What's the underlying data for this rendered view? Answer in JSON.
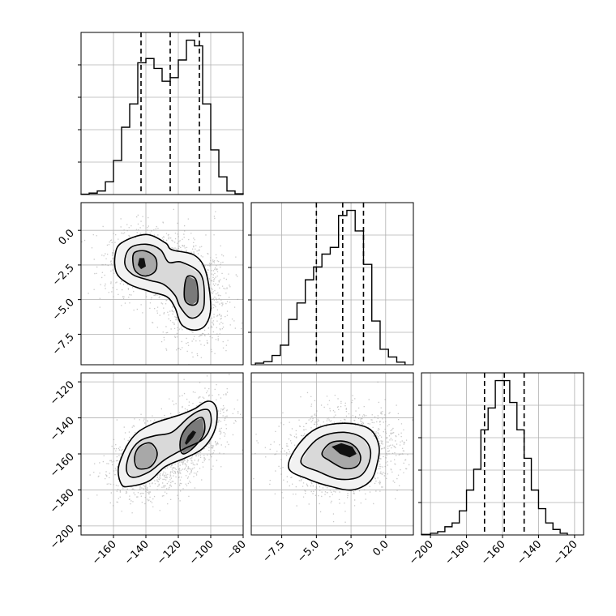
{
  "chart_data": {
    "type": "corner",
    "grid": true,
    "parameters": [
      {
        "index": 0,
        "range": [
          -180,
          -80
        ],
        "ticks": [
          -160,
          -140,
          -120,
          -100,
          -80
        ],
        "tick_labels": [
          "−160",
          "−140",
          "−120",
          "−100",
          "−80"
        ],
        "quantiles": [
          -143,
          -125,
          -107
        ],
        "hist_bins": [
          [
            -180,
            -175,
            0.5
          ],
          [
            -175,
            -170,
            2
          ],
          [
            -170,
            -165,
            5
          ],
          [
            -165,
            -160,
            18
          ],
          [
            -160,
            -155,
            48
          ],
          [
            -155,
            -150,
            95
          ],
          [
            -150,
            -145,
            128
          ],
          [
            -145,
            -140,
            186
          ],
          [
            -140,
            -135,
            192
          ],
          [
            -135,
            -130,
            178
          ],
          [
            -130,
            -125,
            160
          ],
          [
            -125,
            -120,
            165
          ],
          [
            -120,
            -115,
            190
          ],
          [
            -115,
            -110,
            218
          ],
          [
            -110,
            -105,
            210
          ],
          [
            -105,
            -100,
            128
          ],
          [
            -100,
            -95,
            63
          ],
          [
            -95,
            -90,
            25
          ],
          [
            -90,
            -85,
            5
          ],
          [
            -85,
            -80,
            1
          ]
        ]
      },
      {
        "index": 1,
        "range": [
          -9.7,
          2.0
        ],
        "ticks": [
          -7.5,
          -5.0,
          -2.5,
          0.0
        ],
        "tick_labels": [
          "−7.5",
          "−5.0",
          "−2.5",
          "0.0"
        ],
        "quantiles": [
          -5.0,
          -3.1,
          -1.6
        ],
        "hist_bins": [
          [
            -9.4,
            -8.8,
            3
          ],
          [
            -8.8,
            -8.2,
            6
          ],
          [
            -8.2,
            -7.6,
            18
          ],
          [
            -7.6,
            -7.0,
            38
          ],
          [
            -7.0,
            -6.4,
            88
          ],
          [
            -6.4,
            -5.8,
            120
          ],
          [
            -5.8,
            -5.2,
            165
          ],
          [
            -5.2,
            -4.6,
            190
          ],
          [
            -4.6,
            -4.0,
            215
          ],
          [
            -4.0,
            -3.4,
            228
          ],
          [
            -3.4,
            -2.8,
            290
          ],
          [
            -2.8,
            -2.2,
            300
          ],
          [
            -2.2,
            -1.6,
            260
          ],
          [
            -1.6,
            -1.0,
            195
          ],
          [
            -1.0,
            -0.4,
            85
          ],
          [
            -0.4,
            0.2,
            30
          ],
          [
            0.2,
            0.8,
            15
          ],
          [
            0.8,
            1.4,
            5
          ]
        ]
      },
      {
        "index": 2,
        "range": [
          -205,
          -115
        ],
        "ticks": [
          -200,
          -180,
          -160,
          -140,
          -120
        ],
        "tick_labels": [
          "−200",
          "−180",
          "−160",
          "−140",
          "−120"
        ],
        "quantiles": [
          -170,
          -159,
          -148
        ],
        "hist_bins": [
          [
            -205,
            -200,
            1
          ],
          [
            -200,
            -196,
            3
          ],
          [
            -196,
            -192,
            6
          ],
          [
            -192,
            -188,
            15
          ],
          [
            -188,
            -184,
            22
          ],
          [
            -184,
            -180,
            44
          ],
          [
            -180,
            -176,
            82
          ],
          [
            -176,
            -172,
            120
          ],
          [
            -172,
            -168,
            192
          ],
          [
            -168,
            -164,
            232
          ],
          [
            -164,
            -160,
            282
          ],
          [
            -160,
            -156,
            282
          ],
          [
            -156,
            -152,
            242
          ],
          [
            -152,
            -148,
            192
          ],
          [
            -148,
            -144,
            140
          ],
          [
            -144,
            -140,
            82
          ],
          [
            -140,
            -136,
            48
          ],
          [
            -136,
            -132,
            22
          ],
          [
            -132,
            -128,
            10
          ],
          [
            -128,
            -124,
            3
          ]
        ]
      }
    ],
    "pairs": [
      {
        "x_param": 0,
        "y_param": 1,
        "modes": [
          {
            "cx": -140,
            "cy": -2.3,
            "sx": 11,
            "sy": 1.1,
            "rho": 0.0,
            "weight": 0.5
          },
          {
            "cx": -110,
            "cy": -4.6,
            "sx": 9,
            "sy": 1.6,
            "rho": 0.0,
            "weight": 0.5
          }
        ],
        "contours": [
          {
            "level": "outer",
            "points": [
              [
                -155,
                -0.9
              ],
              [
                -140,
                -0.3
              ],
              [
                -128,
                -0.9
              ],
              [
                -124,
                -1.4
              ],
              [
                -110,
                -1.8
              ],
              [
                -103,
                -3.0
              ],
              [
                -100,
                -5.5
              ],
              [
                -103,
                -6.8
              ],
              [
                -110,
                -7.2
              ],
              [
                -118,
                -6.8
              ],
              [
                -122,
                -5.6
              ],
              [
                -127,
                -4.8
              ],
              [
                -138,
                -4.4
              ],
              [
                -150,
                -3.9
              ],
              [
                -158,
                -3.1
              ],
              [
                -159,
                -1.8
              ]
            ]
          },
          {
            "level": "middle",
            "points": [
              [
                -150,
                -1.3
              ],
              [
                -140,
                -1.0
              ],
              [
                -131,
                -1.4
              ],
              [
                -126,
                -2.3
              ],
              [
                -118,
                -2.3
              ],
              [
                -106,
                -3.2
              ],
              [
                -104,
                -5.2
              ],
              [
                -107,
                -6.1
              ],
              [
                -113,
                -6.3
              ],
              [
                -119,
                -5.5
              ],
              [
                -122,
                -4.7
              ],
              [
                -129,
                -3.9
              ],
              [
                -138,
                -3.6
              ],
              [
                -148,
                -3.2
              ],
              [
                -153,
                -2.4
              ]
            ]
          },
          {
            "level": "inner-a",
            "points": [
              [
                -147,
                -1.6
              ],
              [
                -140,
                -1.5
              ],
              [
                -134,
                -2.0
              ],
              [
                -134,
                -2.9
              ],
              [
                -140,
                -3.3
              ],
              [
                -146,
                -3.0
              ],
              [
                -148,
                -2.3
              ]
            ]
          },
          {
            "level": "inner-b",
            "points": [
              [
                -114,
                -3.3
              ],
              [
                -109,
                -3.6
              ],
              [
                -108,
                -5.1
              ],
              [
                -112,
                -5.4
              ],
              [
                -116,
                -5.0
              ],
              [
                -116,
                -3.9
              ]
            ]
          },
          {
            "level": "core",
            "points": [
              [
                -144,
                -2.0
              ],
              [
                -141,
                -2.0
              ],
              [
                -140,
                -2.6
              ],
              [
                -143,
                -2.8
              ],
              [
                -145,
                -2.5
              ]
            ]
          }
        ]
      },
      {
        "x_param": 0,
        "y_param": 2,
        "modes": [
          {
            "cx": -140,
            "cy": -164,
            "sx": 10,
            "sy": 9,
            "rho": 0.35,
            "weight": 0.5
          },
          {
            "cx": -112,
            "cy": -152,
            "sx": 10,
            "sy": 11,
            "rho": 0.5,
            "weight": 0.5
          }
        ],
        "contours": [
          {
            "level": "outer",
            "points": [
              [
                -150,
                -178
              ],
              [
                -138,
                -175
              ],
              [
                -128,
                -167
              ],
              [
                -115,
                -162
              ],
              [
                -105,
                -157
              ],
              [
                -98,
                -148
              ],
              [
                -96,
                -138
              ],
              [
                -98,
                -132
              ],
              [
                -103,
                -131
              ],
              [
                -110,
                -135
              ],
              [
                -118,
                -138
              ],
              [
                -125,
                -140
              ],
              [
                -135,
                -143
              ],
              [
                -145,
                -148
              ],
              [
                -152,
                -156
              ],
              [
                -157,
                -168
              ],
              [
                -155,
                -177
              ]
            ]
          },
          {
            "level": "middle",
            "points": [
              [
                -148,
                -173
              ],
              [
                -138,
                -170
              ],
              [
                -128,
                -163
              ],
              [
                -116,
                -157
              ],
              [
                -105,
                -152
              ],
              [
                -100,
                -144
              ],
              [
                -101,
                -136
              ],
              [
                -107,
                -136
              ],
              [
                -114,
                -140
              ],
              [
                -124,
                -148
              ],
              [
                -135,
                -150
              ],
              [
                -144,
                -153
              ],
              [
                -150,
                -160
              ],
              [
                -152,
                -169
              ]
            ]
          },
          {
            "level": "inner-a",
            "points": [
              [
                -145,
                -168
              ],
              [
                -137,
                -167
              ],
              [
                -133,
                -160
              ],
              [
                -137,
                -154
              ],
              [
                -144,
                -156
              ],
              [
                -147,
                -162
              ]
            ]
          },
          {
            "level": "inner-b",
            "points": [
              [
                -117,
                -160
              ],
              [
                -110,
                -156
              ],
              [
                -104,
                -148
              ],
              [
                -105,
                -140
              ],
              [
                -111,
                -142
              ],
              [
                -117,
                -148
              ],
              [
                -119,
                -155
              ]
            ]
          },
          {
            "level": "core",
            "points": [
              [
                -115,
                -155
              ],
              [
                -111,
                -151
              ],
              [
                -109,
                -148
              ],
              [
                -111,
                -147
              ],
              [
                -114,
                -150
              ],
              [
                -116,
                -154
              ]
            ]
          }
        ]
      },
      {
        "x_param": 1,
        "y_param": 2,
        "modes": [
          {
            "cx": -3.1,
            "cy": -159,
            "sx": 1.8,
            "sy": 10,
            "rho": 0.1,
            "weight": 1.0
          }
        ],
        "contours": [
          {
            "level": "outer",
            "points": [
              [
                -7.0,
                -168
              ],
              [
                -6.4,
                -156
              ],
              [
                -5.0,
                -146
              ],
              [
                -3.0,
                -143
              ],
              [
                -1.2,
                -146
              ],
              [
                -0.5,
                -155
              ],
              [
                -0.6,
                -165
              ],
              [
                -1.1,
                -175
              ],
              [
                -2.4,
                -180
              ],
              [
                -4.0,
                -178
              ],
              [
                -5.6,
                -174
              ]
            ]
          },
          {
            "level": "middle",
            "points": [
              [
                -6.1,
                -165
              ],
              [
                -5.5,
                -156
              ],
              [
                -4.5,
                -150
              ],
              [
                -3.0,
                -148
              ],
              [
                -1.7,
                -151
              ],
              [
                -1.1,
                -158
              ],
              [
                -1.3,
                -167
              ],
              [
                -2.0,
                -173
              ],
              [
                -3.4,
                -174
              ],
              [
                -4.8,
                -170
              ]
            ]
          },
          {
            "level": "inner",
            "points": [
              [
                -4.6,
                -160
              ],
              [
                -4.0,
                -154
              ],
              [
                -3.0,
                -153
              ],
              [
                -2.2,
                -156
              ],
              [
                -1.8,
                -162
              ],
              [
                -2.1,
                -167
              ],
              [
                -3.0,
                -168
              ],
              [
                -4.0,
                -164
              ]
            ]
          },
          {
            "level": "core",
            "points": [
              [
                -3.9,
                -156
              ],
              [
                -3.2,
                -154
              ],
              [
                -2.4,
                -156
              ],
              [
                -2.1,
                -160
              ],
              [
                -2.6,
                -162
              ],
              [
                -3.3,
                -160
              ]
            ]
          }
        ]
      }
    ]
  }
}
